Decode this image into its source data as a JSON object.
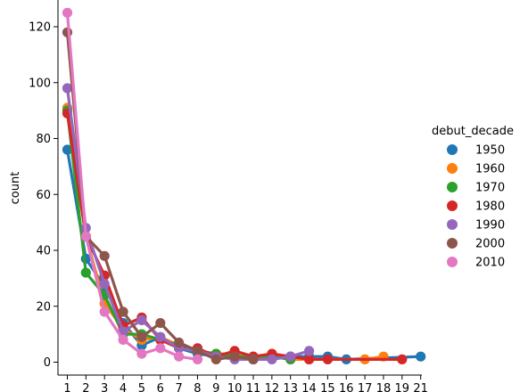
{
  "chart_data": {
    "type": "line",
    "title": "",
    "xlabel": "",
    "ylabel": "count",
    "x": [
      1,
      2,
      3,
      4,
      5,
      6,
      7,
      8,
      9,
      10,
      11,
      12,
      13,
      14,
      15,
      16,
      17,
      18,
      19,
      21
    ],
    "x_tick_labels": [
      "1",
      "2",
      "3",
      "4",
      "5",
      "6",
      "7",
      "8",
      "9",
      "10",
      "11",
      "12",
      "13",
      "14",
      "15",
      "16",
      "17",
      "18",
      "19",
      "21"
    ],
    "y_ticks": [
      0,
      20,
      40,
      60,
      80,
      100,
      120
    ],
    "ylim": [
      -4,
      130
    ],
    "grid": false,
    "legend_title": "debut_decade",
    "legend_position": "right",
    "series": [
      {
        "name": "1950",
        "color": "#1f77b4",
        "points": [
          [
            1,
            76
          ],
          [
            2,
            37
          ],
          [
            3,
            27
          ],
          [
            4,
            14
          ],
          [
            5,
            6
          ],
          [
            6,
            9
          ],
          [
            7,
            5
          ],
          [
            8,
            3
          ],
          [
            9,
            2
          ],
          [
            10,
            2
          ],
          [
            11,
            1
          ],
          [
            12,
            2
          ],
          [
            13,
            2
          ],
          [
            14,
            2
          ],
          [
            15,
            2
          ],
          [
            16,
            1
          ],
          [
            21,
            2
          ]
        ]
      },
      {
        "name": "1960",
        "color": "#ff7f0e",
        "points": [
          [
            1,
            91
          ],
          [
            2,
            45
          ],
          [
            3,
            21
          ],
          [
            4,
            12
          ],
          [
            5,
            8
          ],
          [
            6,
            9
          ],
          [
            7,
            6
          ],
          [
            8,
            4
          ],
          [
            9,
            3
          ],
          [
            10,
            3
          ],
          [
            11,
            1
          ],
          [
            12,
            2
          ],
          [
            13,
            1
          ],
          [
            14,
            1
          ],
          [
            17,
            1
          ],
          [
            18,
            2
          ]
        ]
      },
      {
        "name": "1970",
        "color": "#2ca02c",
        "points": [
          [
            1,
            90
          ],
          [
            2,
            32
          ],
          [
            3,
            24
          ],
          [
            4,
            10
          ],
          [
            5,
            10
          ],
          [
            6,
            8
          ],
          [
            7,
            6
          ],
          [
            8,
            4
          ],
          [
            9,
            3
          ],
          [
            10,
            2
          ],
          [
            11,
            2
          ],
          [
            12,
            2
          ],
          [
            13,
            1
          ]
        ]
      },
      {
        "name": "1980",
        "color": "#d62728",
        "points": [
          [
            1,
            89
          ],
          [
            2,
            45
          ],
          [
            3,
            31
          ],
          [
            4,
            13
          ],
          [
            5,
            16
          ],
          [
            6,
            8
          ],
          [
            7,
            5
          ],
          [
            8,
            5
          ],
          [
            9,
            2
          ],
          [
            10,
            4
          ],
          [
            11,
            2
          ],
          [
            12,
            3
          ],
          [
            13,
            2
          ],
          [
            14,
            1
          ],
          [
            15,
            1
          ],
          [
            19,
            1
          ]
        ]
      },
      {
        "name": "1990",
        "color": "#9467bd",
        "points": [
          [
            1,
            98
          ],
          [
            2,
            48
          ],
          [
            3,
            28
          ],
          [
            4,
            11
          ],
          [
            5,
            15
          ],
          [
            6,
            9
          ],
          [
            7,
            5
          ],
          [
            8,
            4
          ],
          [
            9,
            2
          ],
          [
            10,
            1
          ],
          [
            11,
            1
          ],
          [
            12,
            1
          ],
          [
            13,
            2
          ],
          [
            14,
            4
          ]
        ]
      },
      {
        "name": "2000",
        "color": "#8c564b",
        "points": [
          [
            1,
            118
          ],
          [
            2,
            45
          ],
          [
            3,
            38
          ],
          [
            4,
            18
          ],
          [
            5,
            9
          ],
          [
            6,
            14
          ],
          [
            7,
            7
          ],
          [
            8,
            4
          ],
          [
            9,
            1
          ],
          [
            10,
            2
          ],
          [
            11,
            1
          ]
        ]
      },
      {
        "name": "2010",
        "color": "#e377c2",
        "points": [
          [
            1,
            125
          ],
          [
            2,
            45
          ],
          [
            3,
            18
          ],
          [
            4,
            8
          ],
          [
            5,
            3
          ],
          [
            6,
            5
          ],
          [
            7,
            2
          ],
          [
            8,
            1
          ]
        ]
      }
    ]
  }
}
